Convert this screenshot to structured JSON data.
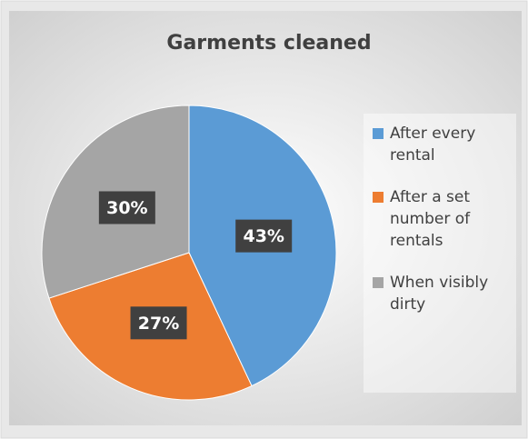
{
  "chart_data": {
    "type": "pie",
    "title": "Garments cleaned",
    "categories": [
      "After every rental",
      "After a set number of rentals",
      "When visibly dirty"
    ],
    "values": [
      43,
      27,
      30
    ],
    "value_labels": [
      "43%",
      "27%",
      "30%"
    ],
    "colors": [
      "#5b9bd5",
      "#ed7d31",
      "#a5a5a5"
    ],
    "legend": "right"
  }
}
